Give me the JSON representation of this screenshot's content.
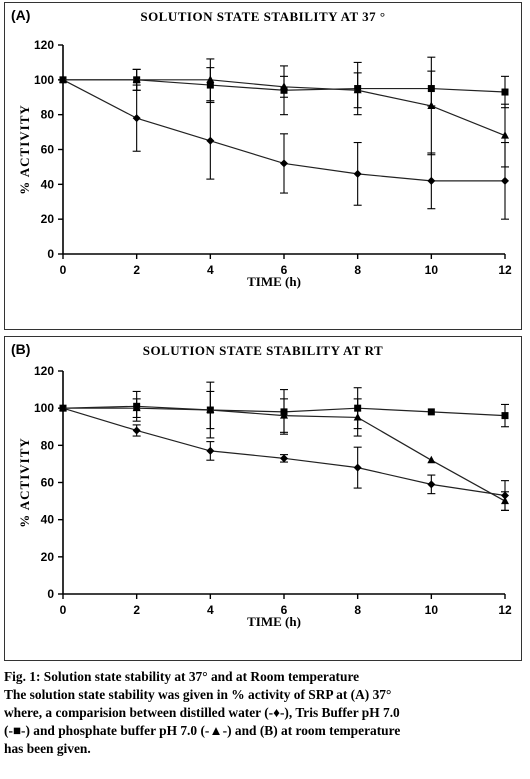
{
  "panels": [
    {
      "label": "(A)",
      "title": "SOLUTION STATE STABILITY AT 37 °"
    },
    {
      "label": "(B)",
      "title": "SOLUTION STATE STABILITY AT RT"
    }
  ],
  "caption": {
    "line1": "Fig. 1: Solution state stability at 37° and at Room temperature",
    "line2": "The solution state stability was given in % activity of SRP at (A) 37°",
    "line3": "where, a comparision between distilled water (-♦-), Tris Buffer pH 7.0",
    "line4": "(-■-) and phosphate buffer pH 7.0 (-▲-) and (B) at room temperature",
    "line5": "has been given."
  },
  "chart_data": [
    {
      "type": "line",
      "title": "SOLUTION STATE STABILITY AT 37 °",
      "xlabel": "TIME (h)",
      "ylabel": "% ACTIVITY",
      "xlim": [
        0,
        12
      ],
      "ylim": [
        0,
        120
      ],
      "x": [
        0,
        2,
        4,
        6,
        8,
        10,
        12
      ],
      "xticks": [
        "0",
        "2",
        "4",
        "6",
        "8",
        "10",
        "12"
      ],
      "yticks": [
        "0",
        "20",
        "40",
        "60",
        "80",
        "100",
        "120"
      ],
      "grid": false,
      "series": [
        {
          "marker": "diamond",
          "values": [
            100,
            78,
            65,
            52,
            46,
            42,
            42
          ],
          "errors": [
            0,
            19,
            22,
            17,
            18,
            16,
            22
          ]
        },
        {
          "marker": "square",
          "values": [
            100,
            100,
            97,
            94,
            95,
            95,
            93
          ],
          "errors": [
            0,
            6,
            10,
            14,
            15,
            10,
            9
          ]
        },
        {
          "marker": "triangle",
          "values": [
            100,
            100,
            100,
            96,
            94,
            85,
            68
          ],
          "errors": [
            0,
            6,
            12,
            6,
            10,
            28,
            18
          ]
        }
      ]
    },
    {
      "type": "line",
      "title": "SOLUTION STATE STABILITY AT RT",
      "xlabel": "TIME (h)",
      "ylabel": "% ACTIVITY",
      "xlim": [
        0,
        12
      ],
      "ylim": [
        0,
        120
      ],
      "x": [
        0,
        2,
        4,
        6,
        8,
        10,
        12
      ],
      "xticks": [
        "0",
        "2",
        "4",
        "6",
        "8",
        "10",
        "12"
      ],
      "yticks": [
        "0",
        "20",
        "40",
        "60",
        "80",
        "100",
        "120"
      ],
      "grid": false,
      "series": [
        {
          "marker": "diamond",
          "values": [
            100,
            88,
            77,
            73,
            68,
            59,
            53
          ],
          "errors": [
            0,
            3,
            5,
            2,
            11,
            5,
            8
          ]
        },
        {
          "marker": "square",
          "values": [
            100,
            101,
            99,
            98,
            100,
            98,
            96
          ],
          "errors": [
            0,
            8,
            15,
            12,
            11,
            0,
            6
          ]
        },
        {
          "marker": "triangle",
          "values": [
            100,
            100,
            99,
            96,
            95,
            72,
            50
          ],
          "errors": [
            0,
            5,
            10,
            9,
            10,
            0,
            5
          ]
        }
      ]
    }
  ]
}
